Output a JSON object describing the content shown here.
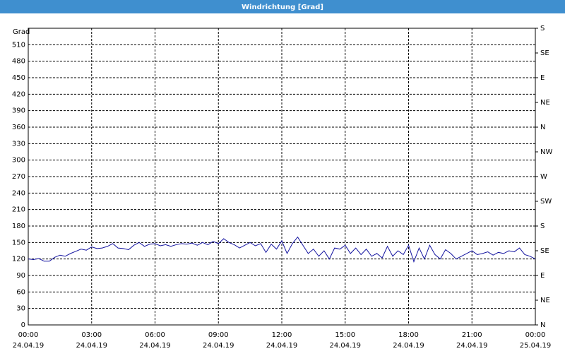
{
  "chart_data": {
    "type": "line",
    "title": "Windrichtung [Grad]",
    "y_label": "Grad",
    "x": [
      0,
      0.25,
      0.5,
      0.75,
      1,
      1.25,
      1.5,
      1.75,
      2,
      2.25,
      2.5,
      2.75,
      3,
      3.25,
      3.5,
      3.75,
      4,
      4.25,
      4.5,
      4.75,
      5,
      5.25,
      5.5,
      5.75,
      6,
      6.25,
      6.5,
      6.75,
      7,
      7.25,
      7.5,
      7.75,
      8,
      8.25,
      8.5,
      8.75,
      9,
      9.25,
      9.5,
      9.75,
      10,
      10.25,
      10.5,
      10.75,
      11,
      11.25,
      11.5,
      11.75,
      12,
      12.25,
      12.5,
      12.75,
      13,
      13.25,
      13.5,
      13.75,
      14,
      14.25,
      14.5,
      14.75,
      15,
      15.25,
      15.5,
      15.75,
      16,
      16.25,
      16.5,
      16.75,
      17,
      17.25,
      17.5,
      17.75,
      18,
      18.25,
      18.5,
      18.75,
      19,
      19.25,
      19.5,
      19.75,
      20,
      20.25,
      20.5,
      20.75,
      21,
      21.25,
      21.5,
      21.75,
      22,
      22.25,
      22.5,
      22.75,
      23,
      23.25,
      23.5,
      23.75,
      24
    ],
    "series": [
      {
        "name": "Windrichtung",
        "color": "#1414a0",
        "values": [
          120,
          119,
          121,
          116,
          116,
          123,
          127,
          125,
          130,
          134,
          138,
          136,
          142,
          139,
          140,
          143,
          148,
          140,
          139,
          137,
          145,
          150,
          143,
          147,
          148,
          144,
          146,
          143,
          146,
          148,
          147,
          149,
          145,
          150,
          146,
          152,
          148,
          157,
          150,
          146,
          140,
          145,
          150,
          144,
          148,
          132,
          147,
          138,
          153,
          130,
          148,
          160,
          145,
          130,
          138,
          125,
          135,
          120,
          140,
          138,
          145,
          130,
          140,
          128,
          138,
          125,
          130,
          122,
          143,
          125,
          135,
          128,
          145,
          115,
          140,
          120,
          145,
          128,
          120,
          137,
          130,
          120,
          125,
          130,
          135,
          128,
          130,
          133,
          127,
          132,
          130,
          135,
          133,
          140,
          128,
          125,
          120
        ]
      }
    ],
    "xlim": [
      0,
      24
    ],
    "xticks": [
      {
        "value": 0,
        "label": "00:00"
      },
      {
        "value": 3,
        "label": "03:00"
      },
      {
        "value": 6,
        "label": "06:00"
      },
      {
        "value": 9,
        "label": "09:00"
      },
      {
        "value": 12,
        "label": "12:00"
      },
      {
        "value": 15,
        "label": "15:00"
      },
      {
        "value": 18,
        "label": "18:00"
      },
      {
        "value": 21,
        "label": "21:00"
      },
      {
        "value": 24,
        "label": "00:00"
      }
    ],
    "xtick_dates": [
      "24.04.19",
      "24.04.19",
      "24.04.19",
      "24.04.19",
      "24.04.19",
      "24.04.19",
      "24.04.19",
      "24.04.19",
      "25.04.19"
    ],
    "ylim": [
      0,
      540
    ],
    "yticks": [
      0,
      30,
      60,
      90,
      120,
      150,
      180,
      210,
      240,
      270,
      300,
      330,
      360,
      390,
      420,
      450,
      480,
      510
    ],
    "y2lim": [
      0,
      540
    ],
    "y2ticks": [
      {
        "value": 0,
        "label": "N"
      },
      {
        "value": 45,
        "label": "NE"
      },
      {
        "value": 90,
        "label": "E"
      },
      {
        "value": 135,
        "label": "SE"
      },
      {
        "value": 180,
        "label": "S"
      },
      {
        "value": 225,
        "label": "SW"
      },
      {
        "value": 270,
        "label": "W"
      },
      {
        "value": 315,
        "label": "NW"
      },
      {
        "value": 360,
        "label": "N"
      },
      {
        "value": 405,
        "label": "NE"
      },
      {
        "value": 450,
        "label": "E"
      },
      {
        "value": 495,
        "label": "SE"
      },
      {
        "value": 540,
        "label": "S"
      }
    ],
    "grid": true
  }
}
